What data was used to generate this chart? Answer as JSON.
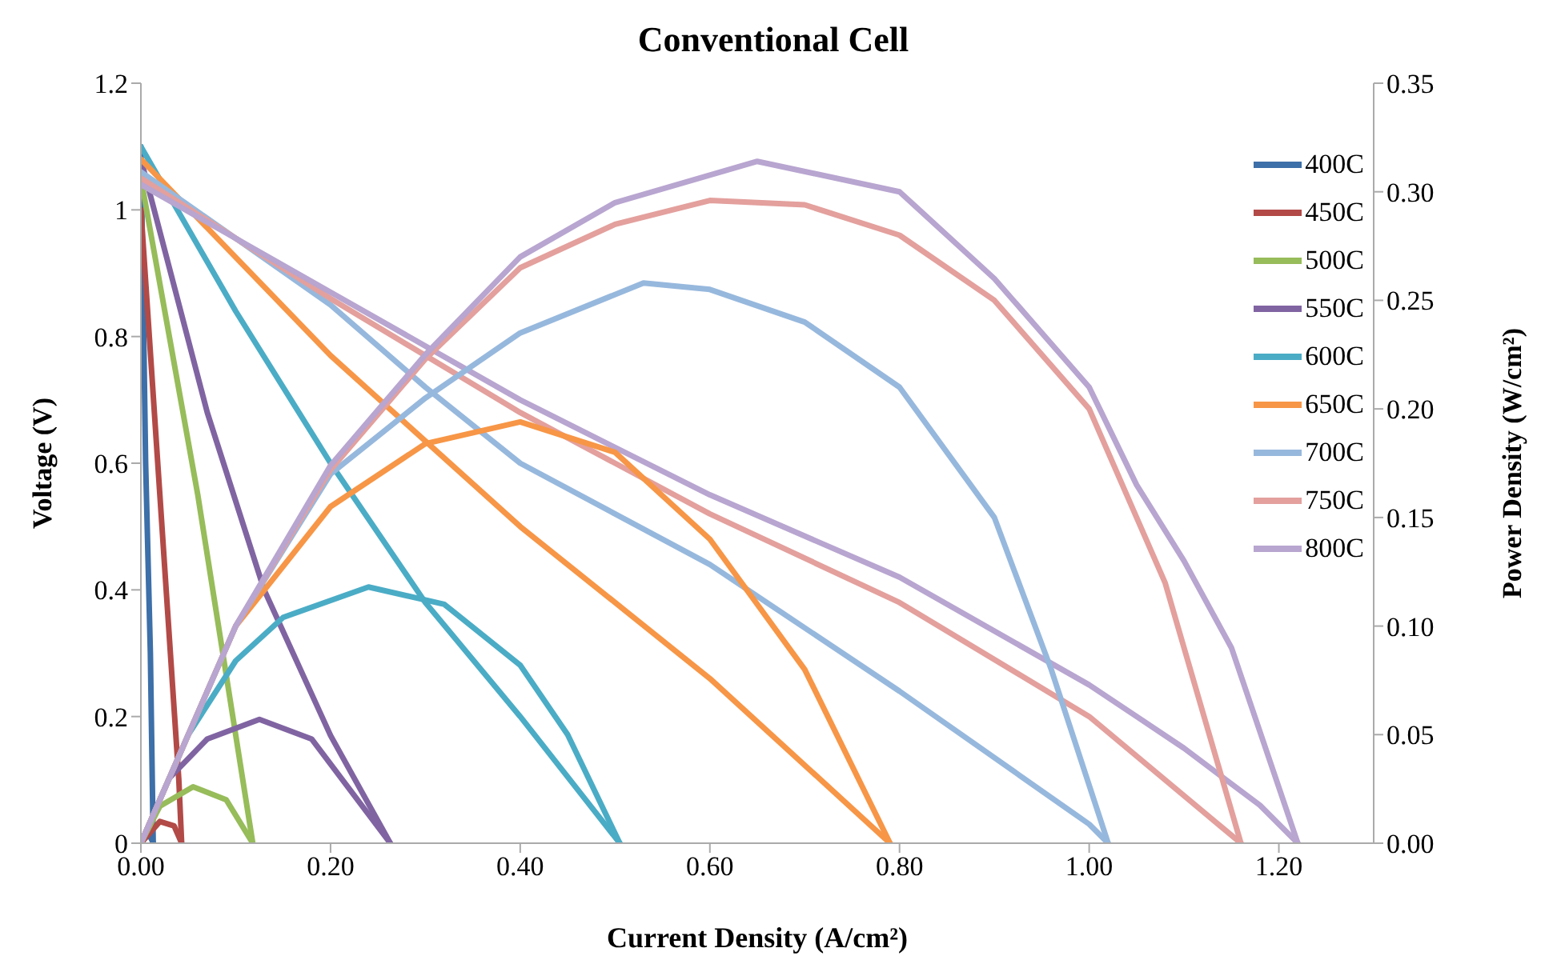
{
  "chart_data": {
    "type": "line",
    "title": "Conventional Cell",
    "xlabel": "Current Density (A/cm²)",
    "ylabel": "Voltage (V)",
    "y2label": "Power Density (W/cm²)",
    "xlim": [
      0,
      1.3
    ],
    "xticks": [
      {
        "value": 0,
        "label": "0.00"
      },
      {
        "value": 0.2,
        "label": "0.20"
      },
      {
        "value": 0.4,
        "label": "0.40"
      },
      {
        "value": 0.6,
        "label": "0.60"
      },
      {
        "value": 0.8,
        "label": "0.80"
      },
      {
        "value": 1,
        "label": "1.00"
      },
      {
        "value": 1.2,
        "label": "1.20"
      }
    ],
    "ylim": [
      0,
      1.2
    ],
    "yticks": [
      0,
      0.2,
      0.4,
      0.6,
      0.8,
      1,
      1.2
    ],
    "y2lim": [
      0,
      0.35
    ],
    "y2ticks": [
      {
        "value": 0,
        "label": "0.00"
      },
      {
        "value": 0.05,
        "label": "0.05"
      },
      {
        "value": 0.1,
        "label": "0.10"
      },
      {
        "value": 0.15,
        "label": "0.15"
      },
      {
        "value": 0.2,
        "label": "0.20"
      },
      {
        "value": 0.25,
        "label": "0.25"
      },
      {
        "value": 0.3,
        "label": "0.30"
      },
      {
        "value": 0.35,
        "label": "0.35"
      }
    ],
    "grid": false,
    "legend": "top right",
    "marker": "none",
    "line_style": "solid",
    "series": [
      {
        "name": "400C",
        "color": "#3d6fa8",
        "x": [
          0,
          0.005,
          0.01,
          0.013
        ],
        "values": [
          1.1,
          0.6,
          0.3,
          0
        ]
      },
      {
        "name": "450C",
        "color": "#b24a47",
        "x": [
          0,
          0.02,
          0.04,
          0.043
        ],
        "values": [
          1.0,
          0.55,
          0.1,
          0
        ]
      },
      {
        "name": "500C",
        "color": "#97bc5a",
        "x": [
          0,
          0.06,
          0.118
        ],
        "values": [
          1.05,
          0.55,
          0
        ]
      },
      {
        "name": "550C",
        "color": "#8064a2",
        "x": [
          0,
          0.07,
          0.13,
          0.2,
          0.263
        ],
        "values": [
          1.08,
          0.68,
          0.4,
          0.17,
          0
        ]
      },
      {
        "name": "600C",
        "color": "#4bacc6",
        "x": [
          0,
          0.1,
          0.2,
          0.3,
          0.4,
          0.505
        ],
        "values": [
          1.1,
          0.84,
          0.6,
          0.38,
          0.2,
          0
        ]
      },
      {
        "name": "650C",
        "color": "#f79646",
        "x": [
          0,
          0.2,
          0.4,
          0.6,
          0.79
        ],
        "values": [
          1.08,
          0.77,
          0.5,
          0.26,
          0
        ]
      },
      {
        "name": "700C",
        "color": "#97b8dd",
        "x": [
          0,
          0.2,
          0.3,
          0.4,
          0.6,
          0.8,
          1.0,
          1.02
        ],
        "values": [
          1.06,
          0.85,
          0.72,
          0.6,
          0.44,
          0.24,
          0.03,
          0
        ]
      },
      {
        "name": "750C",
        "color": "#e3a09d",
        "x": [
          0,
          0.2,
          0.4,
          0.6,
          0.8,
          1.0,
          1.16
        ],
        "values": [
          1.05,
          0.86,
          0.68,
          0.52,
          0.38,
          0.2,
          0
        ]
      },
      {
        "name": "800C",
        "color": "#b8a5d0",
        "x": [
          0,
          0.2,
          0.4,
          0.6,
          0.8,
          1.0,
          1.05,
          1.1,
          1.18,
          1.22
        ],
        "values": [
          1.04,
          0.87,
          0.7,
          0.55,
          0.42,
          0.25,
          0.2,
          0.15,
          0.06,
          0
        ]
      },
      {
        "color": "#3d6fa8",
        "axis": "y2",
        "x": [
          0,
          0.005,
          0.01,
          0.013
        ],
        "values": [
          0,
          0.003,
          0.003,
          0
        ]
      },
      {
        "color": "#b24a47",
        "axis": "y2",
        "x": [
          0,
          0.02,
          0.035,
          0.043
        ],
        "values": [
          0,
          0.01,
          0.008,
          0
        ]
      },
      {
        "color": "#97bc5a",
        "axis": "y2",
        "x": [
          0,
          0.02,
          0.055,
          0.09,
          0.118
        ],
        "values": [
          0,
          0.017,
          0.026,
          0.02,
          0
        ]
      },
      {
        "color": "#8064a2",
        "axis": "y2",
        "x": [
          0,
          0.03,
          0.07,
          0.125,
          0.18,
          0.263
        ],
        "values": [
          0,
          0.03,
          0.048,
          0.057,
          0.048,
          0
        ]
      },
      {
        "color": "#4bacc6",
        "axis": "y2",
        "x": [
          0,
          0.05,
          0.1,
          0.15,
          0.24,
          0.32,
          0.4,
          0.45,
          0.505
        ],
        "values": [
          0,
          0.05,
          0.084,
          0.104,
          0.118,
          0.11,
          0.082,
          0.05,
          0
        ]
      },
      {
        "color": "#f79646",
        "axis": "y2",
        "x": [
          0,
          0.1,
          0.2,
          0.3,
          0.4,
          0.5,
          0.6,
          0.7,
          0.79
        ],
        "values": [
          0,
          0.1,
          0.155,
          0.184,
          0.194,
          0.18,
          0.14,
          0.08,
          0
        ]
      },
      {
        "color": "#97b8dd",
        "axis": "y2",
        "x": [
          0,
          0.1,
          0.2,
          0.3,
          0.4,
          0.53,
          0.6,
          0.7,
          0.8,
          0.9,
          0.96,
          1.02
        ],
        "values": [
          0,
          0.1,
          0.17,
          0.205,
          0.235,
          0.258,
          0.255,
          0.24,
          0.21,
          0.15,
          0.08,
          0
        ]
      },
      {
        "color": "#e3a09d",
        "axis": "y2",
        "x": [
          0,
          0.1,
          0.2,
          0.3,
          0.4,
          0.5,
          0.6,
          0.7,
          0.8,
          0.9,
          1.0,
          1.08,
          1.16
        ],
        "values": [
          0,
          0.1,
          0.172,
          0.223,
          0.265,
          0.285,
          0.296,
          0.294,
          0.28,
          0.25,
          0.2,
          0.12,
          0
        ]
      },
      {
        "color": "#b8a5d0",
        "axis": "y2",
        "x": [
          0,
          0.1,
          0.2,
          0.3,
          0.4,
          0.5,
          0.65,
          0.8,
          0.9,
          1.0,
          1.05,
          1.1,
          1.15,
          1.22
        ],
        "values": [
          0,
          0.1,
          0.174,
          0.225,
          0.27,
          0.295,
          0.314,
          0.3,
          0.26,
          0.21,
          0.165,
          0.13,
          0.09,
          0
        ]
      }
    ]
  }
}
